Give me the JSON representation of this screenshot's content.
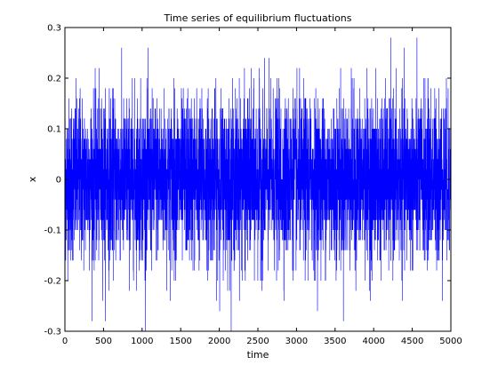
{
  "chart_data": {
    "type": "line",
    "title": "Time series of equilibrium fluctuations",
    "xlabel": "time",
    "ylabel": "x",
    "xlim": [
      0,
      5000
    ],
    "ylim": [
      -0.3,
      0.3
    ],
    "x_ticks": [
      0,
      500,
      1000,
      1500,
      2000,
      2500,
      3000,
      3500,
      4000,
      4500,
      5000
    ],
    "y_ticks": [
      -0.3,
      -0.2,
      -0.1,
      0,
      0.1,
      0.2,
      0.3
    ],
    "x_tick_labels": [
      "0",
      "500",
      "1000",
      "1500",
      "2000",
      "2500",
      "3000",
      "3500",
      "4000",
      "4500",
      "5000"
    ],
    "y_tick_labels": [
      "-0.3",
      "-0.2",
      "-0.1",
      "0",
      "0.1",
      "0.2",
      "0.3"
    ],
    "grid": false,
    "legend": "none",
    "series": [
      {
        "color": "#0000ff",
        "x_start": 0,
        "x_end": 5000,
        "step": 1,
        "distribution": "discrete lattice values, step 0.02, mean 0",
        "value_range": [
          -0.3,
          0.3
        ],
        "mean": 0,
        "approx_std": 0.08
      }
    ]
  }
}
